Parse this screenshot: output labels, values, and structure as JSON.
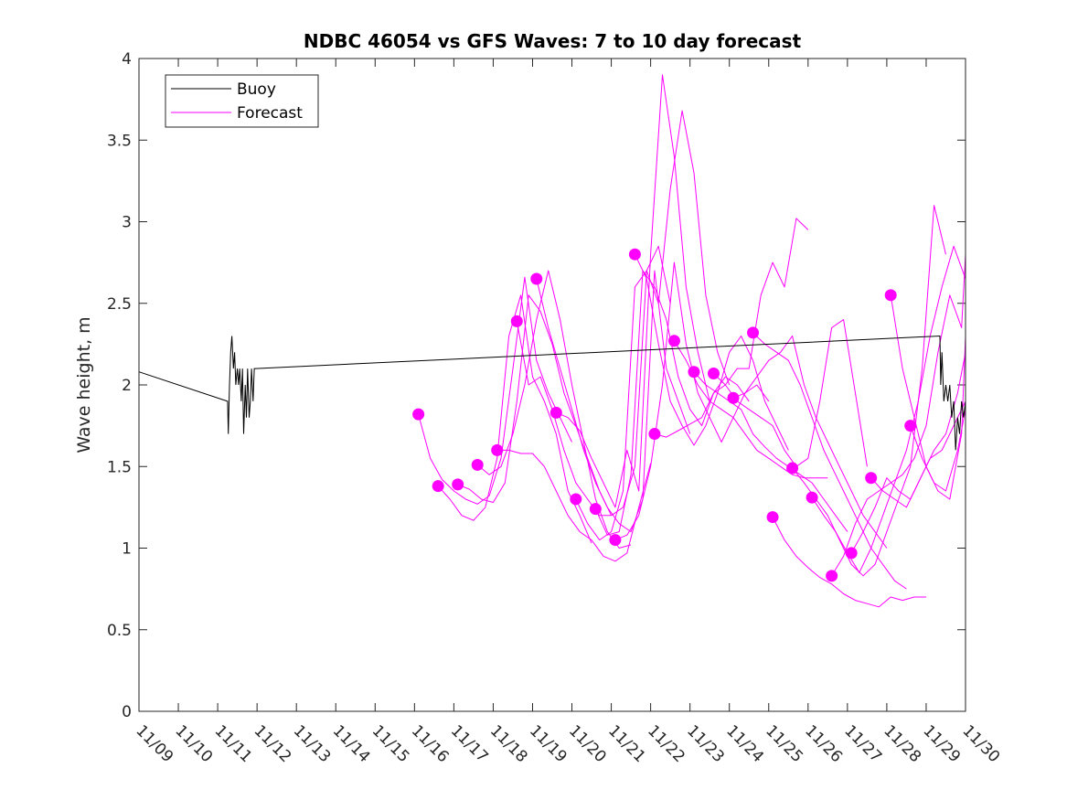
{
  "chart_data": {
    "type": "line",
    "title": "NDBC 46054 vs GFS Waves: 7 to 10 day forecast",
    "xlabel": "",
    "ylabel": "Wave height, m",
    "xlim": [
      0,
      21
    ],
    "ylim": [
      0,
      4
    ],
    "yticks": [
      0,
      0.5,
      1,
      1.5,
      2,
      2.5,
      3,
      3.5,
      4
    ],
    "ytick_labels": [
      "0",
      "0.5",
      "1",
      "1.5",
      "2",
      "2.5",
      "3",
      "3.5",
      "4"
    ],
    "xticks": [
      0,
      1,
      2,
      3,
      4,
      5,
      6,
      7,
      8,
      9,
      10,
      11,
      12,
      13,
      14,
      15,
      16,
      17,
      18,
      19,
      20,
      21
    ],
    "xtick_labels": [
      "11/09",
      "11/10",
      "11/11",
      "11/12",
      "11/13",
      "11/14",
      "11/15",
      "11/16",
      "11/17",
      "11/18",
      "11/19",
      "11/20",
      "11/21",
      "11/22",
      "11/23",
      "11/24",
      "11/25",
      "11/26",
      "11/27",
      "11/28",
      "11/29",
      "11/30"
    ],
    "x_units": "days since 11/09",
    "legend": {
      "placement": "top-left",
      "entries": [
        "Buoy",
        "Forecast"
      ]
    },
    "colors": {
      "buoy": "#000000",
      "forecast": "#ff00ff"
    },
    "buoy": {
      "name": "Buoy",
      "x": [
        0,
        2.25,
        2.27,
        2.3,
        2.33,
        2.36,
        2.4,
        2.43,
        2.46,
        2.5,
        2.53,
        2.56,
        2.6,
        2.63,
        2.66,
        2.7,
        2.73,
        2.76,
        2.8,
        2.83,
        2.86,
        2.9,
        2.93,
        2.97,
        20.35,
        20.37,
        20.4,
        20.45,
        20.5,
        20.55,
        20.6,
        20.65,
        20.7,
        20.75,
        20.8,
        20.85,
        20.9,
        20.95,
        21
      ],
      "y": [
        2.08,
        1.9,
        1.7,
        2.0,
        2.2,
        2.3,
        2.1,
        2.2,
        2.0,
        2.1,
        2.0,
        2.1,
        1.9,
        2.1,
        1.7,
        2.0,
        1.8,
        2.1,
        1.8,
        1.9,
        2.1,
        1.9,
        2.1,
        2.1,
        2.3,
        2.0,
        2.2,
        1.9,
        2.0,
        1.9,
        2.0,
        1.8,
        1.9,
        1.6,
        1.8,
        1.7,
        1.9,
        1.8,
        1.9
      ]
    },
    "forecast_series": [
      {
        "name": "Forecast",
        "x": [
          7.1,
          7.4,
          7.7,
          8.0,
          8.3,
          8.6,
          8.9,
          9.2,
          9.5,
          9.8,
          10.1,
          10.4,
          10.7,
          11.0
        ],
        "y": [
          1.82,
          1.55,
          1.42,
          1.35,
          1.3,
          1.27,
          1.32,
          1.55,
          2.1,
          2.66,
          2.15,
          1.95,
          1.8,
          1.65
        ]
      },
      {
        "name": "Forecast",
        "x": [
          7.6,
          7.9,
          8.2,
          8.5,
          8.8,
          9.1,
          9.4,
          9.7,
          10.0,
          10.3,
          10.6,
          10.9,
          11.2,
          11.5
        ],
        "y": [
          1.38,
          1.3,
          1.2,
          1.17,
          1.25,
          1.55,
          2.3,
          2.55,
          2.05,
          1.9,
          1.7,
          1.35,
          1.2,
          1.03
        ]
      },
      {
        "name": "Forecast",
        "x": [
          8.1,
          8.4,
          8.7,
          9.0,
          9.3,
          9.6,
          9.9,
          10.2,
          10.5,
          10.8,
          11.1,
          11.4,
          11.7,
          12.0
        ],
        "y": [
          1.39,
          1.36,
          1.3,
          1.28,
          1.4,
          1.9,
          2.55,
          2.45,
          2.25,
          1.95,
          1.75,
          1.55,
          1.35,
          1.2
        ]
      },
      {
        "name": "Forecast",
        "x": [
          8.6,
          8.9,
          9.2,
          9.5,
          9.8,
          10.1,
          10.4,
          10.7,
          11.0,
          11.3,
          11.6,
          11.9,
          12.2,
          12.5
        ],
        "y": [
          1.51,
          1.45,
          1.5,
          1.7,
          2.0,
          2.4,
          2.7,
          2.4,
          2.0,
          1.65,
          1.3,
          1.1,
          1.0,
          1.02
        ]
      },
      {
        "name": "Forecast",
        "x": [
          9.1,
          9.4,
          9.7,
          10.0,
          10.3,
          10.6,
          10.9,
          11.2,
          11.5,
          11.8,
          12.1,
          12.4,
          12.7,
          13.0
        ],
        "y": [
          1.6,
          1.6,
          1.58,
          1.58,
          1.5,
          1.35,
          1.2,
          1.1,
          1.05,
          0.95,
          0.92,
          0.97,
          1.25,
          1.52
        ]
      },
      {
        "name": "Forecast",
        "x": [
          9.6,
          9.9,
          10.2,
          10.5,
          10.8,
          11.1,
          11.4,
          11.7,
          12.0,
          12.3,
          12.6,
          12.9,
          13.2,
          13.5
        ],
        "y": [
          2.39,
          2.0,
          2.05,
          1.85,
          1.6,
          1.4,
          1.3,
          1.2,
          1.2,
          1.25,
          1.5,
          2.7,
          2.85,
          2.5
        ]
      },
      {
        "name": "Forecast",
        "x": [
          10.1,
          10.4,
          10.7,
          11.0,
          11.3,
          11.6,
          11.9,
          12.2,
          12.5,
          12.8,
          13.1,
          13.4,
          13.7,
          14.0
        ],
        "y": [
          2.65,
          2.35,
          2.1,
          1.85,
          1.6,
          1.4,
          1.25,
          1.15,
          1.1,
          1.3,
          2.7,
          2.1,
          1.9,
          1.7
        ]
      },
      {
        "name": "Forecast",
        "x": [
          10.6,
          10.9,
          11.2,
          11.5,
          11.8,
          12.1,
          12.4,
          12.7,
          13.0,
          13.3,
          13.6,
          13.9,
          14.2,
          14.5
        ],
        "y": [
          1.83,
          1.8,
          1.72,
          1.55,
          1.4,
          1.25,
          1.6,
          1.35,
          2.8,
          3.9,
          3.4,
          2.6,
          2.2,
          1.9
        ]
      },
      {
        "name": "Forecast",
        "x": [
          11.1,
          11.4,
          11.7,
          12.0,
          12.3,
          12.6,
          12.9,
          13.2,
          13.5,
          13.8,
          14.1,
          14.4,
          14.7,
          15.0
        ],
        "y": [
          1.3,
          1.15,
          1.05,
          1.1,
          1.35,
          2.6,
          2.7,
          2.5,
          3.2,
          3.68,
          3.3,
          2.55,
          2.2,
          2.0
        ]
      },
      {
        "name": "Forecast",
        "x": [
          11.6,
          11.9,
          12.2,
          12.5,
          12.8,
          13.1,
          13.4,
          13.7,
          14.0,
          14.3,
          14.6,
          14.9,
          15.2,
          15.5
        ],
        "y": [
          1.24,
          1.08,
          1.1,
          1.45,
          2.7,
          2.6,
          2.4,
          2.05,
          1.85,
          1.75,
          1.95,
          2.05,
          2.0,
          1.9
        ]
      },
      {
        "name": "Forecast",
        "x": [
          12.1,
          12.4,
          12.7,
          13.0,
          13.3,
          13.6,
          13.9,
          14.2,
          14.5,
          14.8,
          15.1,
          15.4,
          15.7,
          16.0
        ],
        "y": [
          1.05,
          1.08,
          1.2,
          1.5,
          2.0,
          2.75,
          2.25,
          1.95,
          1.8,
          1.65,
          1.8,
          1.95,
          2.0,
          1.9
        ]
      },
      {
        "name": "Forecast",
        "x": [
          12.6,
          12.9,
          13.2,
          13.5,
          13.8,
          14.1,
          14.4,
          14.7,
          15.0,
          15.3,
          15.6,
          15.9,
          16.2,
          16.5
        ],
        "y": [
          2.8,
          2.65,
          2.25,
          1.9,
          1.75,
          1.63,
          1.75,
          1.95,
          2.2,
          2.3,
          2.15,
          1.9,
          1.75,
          1.6
        ]
      },
      {
        "name": "Forecast",
        "x": [
          13.1,
          13.4,
          13.7,
          14.0,
          14.3,
          14.6,
          14.9,
          15.2,
          15.5,
          15.8,
          16.1,
          16.4,
          16.7,
          17.0
        ],
        "y": [
          1.7,
          1.68,
          1.72,
          1.76,
          1.8,
          1.95,
          2.0,
          2.1,
          2.1,
          2.55,
          2.75,
          2.6,
          3.02,
          2.95
        ]
      },
      {
        "name": "Forecast",
        "x": [
          13.6,
          13.9,
          14.2,
          14.5,
          14.8,
          15.1,
          15.4,
          15.7,
          16.0,
          16.3,
          16.6,
          16.9,
          17.2,
          17.5
        ],
        "y": [
          2.27,
          2.15,
          2.0,
          1.9,
          1.85,
          1.8,
          1.7,
          1.6,
          1.55,
          1.5,
          1.45,
          1.43,
          1.43,
          1.43
        ]
      },
      {
        "name": "Forecast",
        "x": [
          14.1,
          14.4,
          14.7,
          15.0,
          15.3,
          15.6,
          15.9,
          16.2,
          16.5,
          16.8,
          17.1,
          17.4,
          17.7,
          18.0
        ],
        "y": [
          2.08,
          2.0,
          1.95,
          1.9,
          1.85,
          1.7,
          1.62,
          1.55,
          1.5,
          1.45,
          1.4,
          1.3,
          1.2,
          1.1
        ]
      },
      {
        "name": "Forecast",
        "x": [
          14.6,
          14.9,
          15.2,
          15.5,
          15.8,
          16.1,
          16.4,
          16.7,
          17.0,
          17.3,
          17.6,
          17.9,
          18.2,
          18.5
        ],
        "y": [
          2.07,
          2.0,
          1.9,
          1.85,
          1.8,
          1.75,
          1.6,
          1.5,
          1.55,
          1.9,
          2.35,
          2.4,
          1.95,
          1.5
        ]
      },
      {
        "name": "Forecast",
        "x": [
          15.1,
          15.4,
          15.7,
          16.0,
          16.3,
          16.6,
          16.9,
          17.2,
          17.5,
          17.8,
          18.1,
          18.4,
          18.7,
          19.0
        ],
        "y": [
          1.92,
          1.95,
          2.05,
          2.15,
          2.2,
          2.3,
          2.0,
          1.8,
          1.65,
          1.5,
          1.35,
          1.2,
          1.1,
          1.0
        ]
      },
      {
        "name": "Forecast",
        "x": [
          15.6,
          15.9,
          16.2,
          16.5,
          16.8,
          17.1,
          17.4,
          17.7,
          18.0,
          18.3,
          18.6,
          18.9,
          19.2,
          19.5
        ],
        "y": [
          2.32,
          2.25,
          2.2,
          2.15,
          2.0,
          1.8,
          1.6,
          1.45,
          1.3,
          1.15,
          1.0,
          0.9,
          0.8,
          0.75
        ]
      },
      {
        "name": "Forecast",
        "x": [
          16.1,
          16.4,
          16.7,
          17.0,
          17.3,
          17.6,
          17.9,
          18.2,
          18.5,
          18.8,
          19.1,
          19.4,
          19.7,
          20.0
        ],
        "y": [
          1.19,
          1.05,
          0.95,
          0.88,
          0.82,
          0.78,
          0.72,
          0.68,
          0.66,
          0.64,
          0.7,
          0.68,
          0.7,
          0.7
        ]
      },
      {
        "name": "Forecast",
        "x": [
          16.6,
          16.9,
          17.2,
          17.5,
          17.8,
          18.1,
          18.4,
          18.7,
          19.0,
          19.3,
          19.6,
          19.9,
          20.2,
          20.5
        ],
        "y": [
          1.49,
          1.4,
          1.3,
          1.2,
          1.05,
          0.9,
          0.83,
          0.9,
          1.1,
          1.3,
          1.5,
          2.1,
          3.1,
          2.8
        ]
      },
      {
        "name": "Forecast",
        "x": [
          17.1,
          17.4,
          17.7,
          18.0,
          18.3,
          18.6,
          18.9,
          19.2,
          19.5,
          19.8,
          20.1,
          20.4,
          20.7,
          21.0
        ],
        "y": [
          1.31,
          1.2,
          1.1,
          0.97,
          0.85,
          1.0,
          1.2,
          1.4,
          1.6,
          1.9,
          2.3,
          2.6,
          2.85,
          2.65
        ]
      },
      {
        "name": "Forecast",
        "x": [
          17.6,
          17.9,
          18.2,
          18.5,
          18.8,
          19.1,
          19.4,
          19.7,
          20.0,
          20.3,
          20.6,
          20.9,
          21.0
        ],
        "y": [
          0.83,
          0.95,
          1.15,
          1.3,
          1.35,
          1.4,
          1.45,
          1.55,
          1.75,
          2.2,
          2.55,
          2.35,
          2.8
        ]
      },
      {
        "name": "Forecast",
        "x": [
          18.1,
          18.4,
          18.7,
          19.0,
          19.3,
          19.6,
          19.9,
          20.2,
          20.5,
          20.8,
          21.0
        ],
        "y": [
          0.97,
          1.1,
          1.25,
          1.43,
          1.35,
          1.3,
          1.45,
          1.6,
          1.7,
          1.95,
          2.2
        ]
      },
      {
        "name": "Forecast",
        "x": [
          18.6,
          18.9,
          19.2,
          19.5,
          19.8,
          20.1,
          20.4,
          20.7,
          21.0
        ],
        "y": [
          1.43,
          1.35,
          1.3,
          1.25,
          1.4,
          1.55,
          1.6,
          1.75,
          1.9
        ]
      },
      {
        "name": "Forecast",
        "x": [
          19.1,
          19.4,
          19.7,
          20.0,
          20.3,
          20.6,
          20.9,
          21.0
        ],
        "y": [
          2.55,
          2.1,
          1.8,
          1.5,
          1.35,
          1.3,
          1.7,
          2.3
        ]
      },
      {
        "name": "Forecast",
        "x": [
          19.6,
          19.9,
          20.2,
          20.5,
          20.8,
          21.0
        ],
        "y": [
          1.75,
          1.55,
          1.4,
          1.35,
          1.6,
          1.85
        ]
      }
    ]
  }
}
